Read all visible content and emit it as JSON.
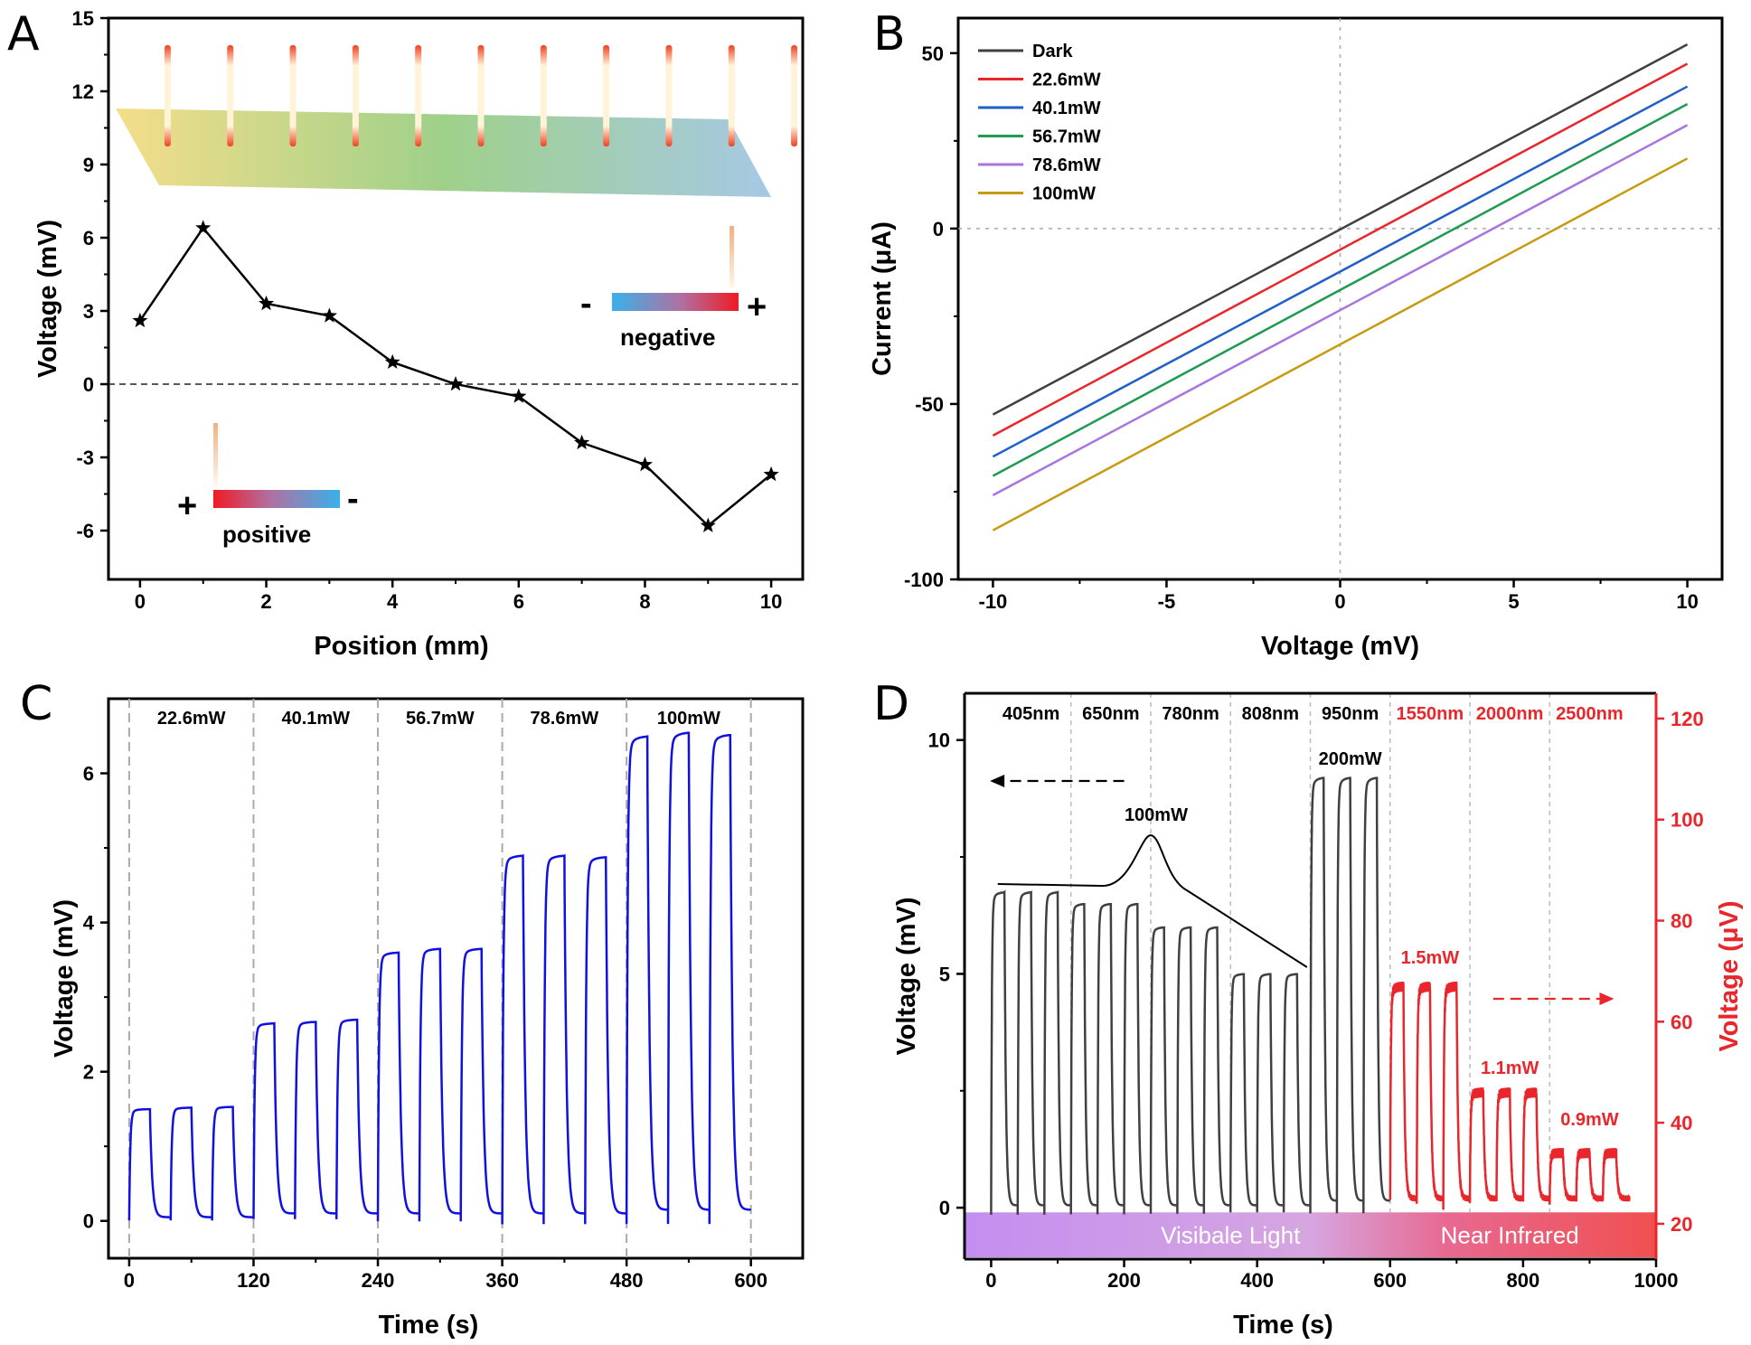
{
  "panels": {
    "A": {
      "letter": "A",
      "inset": {
        "negative_label": "negative",
        "positive_label": "positive",
        "plus": "+",
        "minus": "-"
      },
      "chart_data": {
        "type": "line",
        "xlabel": "Position (mm)",
        "ylabel": "Voltage (mV)",
        "xlim": [
          -0.5,
          10.5
        ],
        "ylim": [
          -8,
          15
        ],
        "xticks": [
          0,
          2,
          4,
          6,
          8,
          10
        ],
        "yticks": [
          -6,
          -3,
          0,
          3,
          6,
          9,
          12,
          15
        ],
        "reference_line": 0,
        "x": [
          0,
          1,
          2,
          3,
          4,
          5,
          6,
          7,
          8,
          9,
          10
        ],
        "values": [
          2.6,
          6.4,
          3.3,
          2.8,
          0.9,
          0.0,
          -0.5,
          -2.4,
          -3.3,
          -5.8,
          -3.7
        ],
        "marker": "star",
        "color": "#000000"
      }
    },
    "B": {
      "letter": "B",
      "chart_data": {
        "type": "line",
        "xlabel": "Voltage (mV)",
        "ylabel": "Current (μA)",
        "xlim": [
          -11,
          11
        ],
        "ylim": [
          -100,
          60
        ],
        "xticks": [
          -10,
          -5,
          0,
          5,
          10
        ],
        "yticks": [
          -100,
          -50,
          0,
          50
        ],
        "legend_position": "top-left",
        "series": [
          {
            "name": "Dark",
            "color": "#404040",
            "x": [
              -10,
              10
            ],
            "y": [
              -53,
              52.5
            ]
          },
          {
            "name": "22.6mW",
            "color": "#e8262b",
            "x": [
              -10,
              10
            ],
            "y": [
              -59,
              47
            ]
          },
          {
            "name": "40.1mW",
            "color": "#1f5fc8",
            "x": [
              -10,
              10
            ],
            "y": [
              -65,
              40.5
            ]
          },
          {
            "name": "56.7mW",
            "color": "#1e9b50",
            "x": [
              -10,
              10
            ],
            "y": [
              -70.5,
              35.5
            ]
          },
          {
            "name": "78.6mW",
            "color": "#a874e0",
            "x": [
              -10,
              10
            ],
            "y": [
              -76,
              29.5
            ]
          },
          {
            "name": "100mW",
            "color": "#c79a10",
            "x": [
              -10,
              10
            ],
            "y": [
              -86,
              20
            ]
          }
        ]
      }
    },
    "C": {
      "letter": "C",
      "chart_data": {
        "type": "line",
        "xlabel": "Time (s)",
        "ylabel": "Voltage (mV)",
        "xlim": [
          -20,
          650
        ],
        "ylim": [
          -0.5,
          7.0
        ],
        "xticks": [
          0,
          120,
          240,
          360,
          480,
          600
        ],
        "yticks": [
          0,
          2,
          4,
          6
        ],
        "color": "#1010e0",
        "period_s": 40,
        "on_s": 20,
        "segment_bounds": [
          0,
          120,
          240,
          360,
          480,
          600
        ],
        "segment_labels": [
          "22.6mW",
          "40.1mW",
          "56.7mW",
          "78.6mW",
          "100mW"
        ],
        "segments": [
          {
            "label": "22.6mW",
            "peaks": [
              1.5,
              1.52,
              1.53
            ],
            "baseline": 0.05
          },
          {
            "label": "40.1mW",
            "peaks": [
              2.65,
              2.67,
              2.7
            ],
            "baseline": 0.1
          },
          {
            "label": "56.7mW",
            "peaks": [
              3.6,
              3.65,
              3.65
            ],
            "baseline": 0.1
          },
          {
            "label": "78.6mW",
            "peaks": [
              4.9,
              4.9,
              4.88
            ],
            "baseline": 0.1
          },
          {
            "label": "100mW",
            "peaks": [
              6.5,
              6.55,
              6.52
            ],
            "baseline": 0.15
          }
        ]
      }
    },
    "D": {
      "letter": "D",
      "chart_data": {
        "type": "line",
        "xlabel": "Time (s)",
        "ylabel_left": "Voltage (mV)",
        "ylabel_right": "Voltage (μV)",
        "xlim": [
          -40,
          1000
        ],
        "ylim_left": [
          -1.1,
          11
        ],
        "ylim_right": [
          13,
          125
        ],
        "xticks": [
          0,
          200,
          400,
          600,
          800,
          1000
        ],
        "yticks_left": [
          0,
          5,
          10
        ],
        "yticks_right": [
          20,
          40,
          60,
          80,
          100,
          120
        ],
        "period_s": 40,
        "on_s": 20,
        "segment_bounds": [
          0,
          120,
          240,
          360,
          480,
          600,
          720,
          840,
          960
        ],
        "wavelength_labels": [
          "405nm",
          "650nm",
          "780nm",
          "808nm",
          "950nm",
          "1550nm",
          "2000nm",
          "2500nm"
        ],
        "power_labels": {
          "visible": "100mW",
          "950nm": "200mW",
          "1550nm": "1.5mW",
          "2000nm": "1.1mW",
          "2500nm": "0.9mW"
        },
        "segments": [
          {
            "label": "405nm",
            "axis": "left",
            "peak": 6.75,
            "baseline": 0.05
          },
          {
            "label": "650nm",
            "axis": "left",
            "peak": 6.5,
            "baseline": 0.05
          },
          {
            "label": "780nm",
            "axis": "left",
            "peak": 6.0,
            "baseline": 0.05
          },
          {
            "label": "808nm",
            "axis": "left",
            "peak": 5.0,
            "baseline": 0.05
          },
          {
            "label": "950nm",
            "axis": "left",
            "peak": 9.2,
            "baseline": 0.15
          },
          {
            "label": "1550nm",
            "axis": "right",
            "peak": 67,
            "baseline": 25
          },
          {
            "label": "2000nm",
            "axis": "right",
            "peak": 46,
            "baseline": 25
          },
          {
            "label": "2500nm",
            "axis": "right",
            "peak": 34,
            "baseline": 25
          }
        ],
        "colors": {
          "left": "#404040",
          "right": "#e8262b"
        },
        "band_labels": {
          "visible": "Visibale Light",
          "nir": "Near Infrared"
        }
      }
    }
  }
}
